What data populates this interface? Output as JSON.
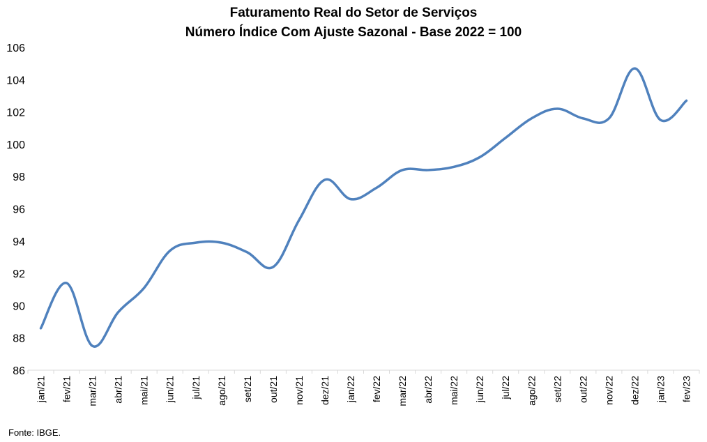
{
  "chart_data": {
    "type": "line",
    "title": "Faturamento Real do Setor de Serviços",
    "subtitle": "Número Índice Com Ajuste Sazonal - Base 2022 = 100",
    "xlabel": "",
    "ylabel": "",
    "ylim": [
      86,
      106
    ],
    "yticks": [
      86,
      88,
      90,
      92,
      94,
      96,
      98,
      100,
      102,
      104,
      106
    ],
    "grid": false,
    "legend": "none",
    "categories": [
      "jan/21",
      "fev/21",
      "mar/21",
      "abr/21",
      "mai/21",
      "jun/21",
      "jul/21",
      "ago/21",
      "set/21",
      "out/21",
      "nov/21",
      "dez/21",
      "jan/22",
      "fev/22",
      "mar/22",
      "abr/22",
      "mai/22",
      "jun/22",
      "jul/22",
      "ago/22",
      "set/22",
      "out/22",
      "nov/22",
      "dez/22",
      "jan/23",
      "fev/23"
    ],
    "series": [
      {
        "color": "#4F81BD",
        "values": [
          88.6,
          91.4,
          87.5,
          89.6,
          91.1,
          93.4,
          93.9,
          93.9,
          93.3,
          92.4,
          95.3,
          97.8,
          96.6,
          97.3,
          98.4,
          98.4,
          98.6,
          99.2,
          100.4,
          101.6,
          102.2,
          101.6,
          101.6,
          104.7,
          101.5,
          102.7
        ]
      }
    ],
    "source": "Fonte: IBGE."
  }
}
